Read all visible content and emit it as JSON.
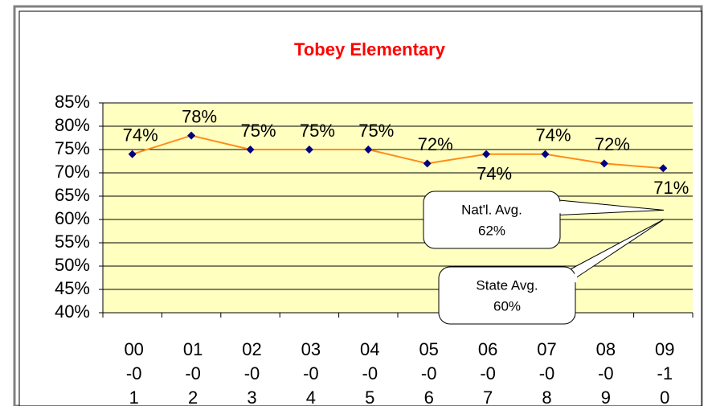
{
  "chart_data": {
    "type": "line",
    "title": "Tobey Elementary",
    "categories": [
      "00-01",
      "01-02",
      "02-03",
      "03-04",
      "04-05",
      "05-06",
      "06-07",
      "07-08",
      "08-09",
      "09-10"
    ],
    "series": [
      {
        "color": "#ff8c1a",
        "marker_color": "#000080",
        "values": [
          74,
          78,
          75,
          75,
          75,
          72,
          74,
          74,
          72,
          71
        ],
        "value_labels": [
          "74%",
          "78%",
          "75%",
          "75%",
          "75%",
          "72%",
          "74%",
          "74%",
          "72%",
          "71%"
        ]
      }
    ],
    "ylim": [
      40,
      85
    ],
    "yticks": [
      {
        "value": 40,
        "label": "40%"
      },
      {
        "value": 45,
        "label": "45%"
      },
      {
        "value": 50,
        "label": "50%"
      },
      {
        "value": 55,
        "label": "55%"
      },
      {
        "value": 60,
        "label": "60%"
      },
      {
        "value": 65,
        "label": "65%"
      },
      {
        "value": 70,
        "label": "70%"
      },
      {
        "value": 75,
        "label": "75%"
      },
      {
        "value": 80,
        "label": "80%"
      },
      {
        "value": 85,
        "label": "85%"
      }
    ],
    "grid": true,
    "callouts": [
      {
        "label": "Nat'l. Avg.",
        "value": 62,
        "value_label": "62%"
      },
      {
        "label": "State Avg.",
        "value": 60,
        "value_label": "60%"
      }
    ]
  }
}
